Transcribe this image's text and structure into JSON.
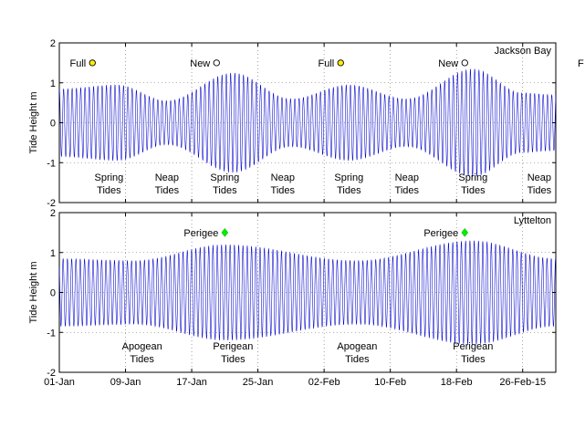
{
  "chart_data": [
    {
      "type": "line",
      "panel": "top",
      "ylabel": "Tide Height m",
      "ylim": [
        -2,
        2
      ],
      "yticks": [
        -2,
        -1,
        0,
        1,
        2
      ],
      "x_range": [
        "2015-01-01",
        "2015-03-02"
      ],
      "station_label": "Jackson Bay",
      "grid": true,
      "series_color": "#0000cc",
      "envelope": [
        {
          "x": "2015-01-01",
          "amp": 0.85
        },
        {
          "x": "2015-01-08",
          "amp": 0.95
        },
        {
          "x": "2015-01-14",
          "amp": 0.55
        },
        {
          "x": "2015-01-22",
          "amp": 1.25
        },
        {
          "x": "2015-01-29",
          "amp": 0.6
        },
        {
          "x": "2015-02-05",
          "amp": 0.95
        },
        {
          "x": "2015-02-12",
          "amp": 0.6
        },
        {
          "x": "2015-02-20",
          "amp": 1.35
        },
        {
          "x": "2015-02-26",
          "amp": 0.75
        },
        {
          "x": "2015-03-02",
          "amp": 0.7
        }
      ],
      "moon_markers": [
        {
          "label": "Full",
          "x": "2015-01-05",
          "y": 1.5,
          "color": "#ffee00"
        },
        {
          "label": "New",
          "x": "2015-01-20",
          "y": 1.5,
          "color": "#ffffff"
        },
        {
          "label": "Full",
          "x": "2015-02-04",
          "y": 1.5,
          "color": "#ffee00"
        },
        {
          "label": "New",
          "x": "2015-02-19",
          "y": 1.5,
          "color": "#ffffff"
        },
        {
          "label": "F",
          "x": "2015-03-06",
          "y": 1.5,
          "color": ""
        }
      ],
      "phase_labels": [
        {
          "line1": "Spring",
          "line2": "Tides",
          "x": "2015-01-07"
        },
        {
          "line1": "Neap",
          "line2": "Tides",
          "x": "2015-01-14"
        },
        {
          "line1": "Spring",
          "line2": "Tides",
          "x": "2015-01-21"
        },
        {
          "line1": "Neap",
          "line2": "Tides",
          "x": "2015-01-28"
        },
        {
          "line1": "Spring",
          "line2": "Tides",
          "x": "2015-02-05"
        },
        {
          "line1": "Neap",
          "line2": "Tides",
          "x": "2015-02-12"
        },
        {
          "line1": "Spring",
          "line2": "Tides",
          "x": "2015-02-20"
        },
        {
          "line1": "Neap",
          "line2": "Tides",
          "x": "2015-02-28"
        }
      ]
    },
    {
      "type": "line",
      "panel": "bottom",
      "ylabel": "Tide Height m",
      "ylim": [
        -2,
        2
      ],
      "yticks": [
        -2,
        -1,
        0,
        1,
        2
      ],
      "x_range": [
        "2015-01-01",
        "2015-03-02"
      ],
      "x_ticks": [
        {
          "x": "2015-01-01",
          "label": "01-Jan"
        },
        {
          "x": "2015-01-09",
          "label": "09-Jan"
        },
        {
          "x": "2015-01-17",
          "label": "17-Jan"
        },
        {
          "x": "2015-01-25",
          "label": "25-Jan"
        },
        {
          "x": "2015-02-02",
          "label": "02-Feb"
        },
        {
          "x": "2015-02-10",
          "label": "10-Feb"
        },
        {
          "x": "2015-02-18",
          "label": "18-Feb"
        },
        {
          "x": "2015-02-26",
          "label": "26-Feb-15"
        }
      ],
      "station_label": "Lyttelton",
      "grid": true,
      "series_color": "#0000cc",
      "envelope": [
        {
          "x": "2015-01-01",
          "amp": 0.85
        },
        {
          "x": "2015-01-10",
          "amp": 0.8
        },
        {
          "x": "2015-01-21",
          "amp": 1.2
        },
        {
          "x": "2015-02-06",
          "amp": 0.8
        },
        {
          "x": "2015-02-20",
          "amp": 1.3
        },
        {
          "x": "2015-03-02",
          "amp": 0.85
        }
      ],
      "perigee_markers": [
        {
          "label": "Perigee",
          "x": "2015-01-21",
          "y": 1.5,
          "color": "#00ee00"
        },
        {
          "label": "Perigee",
          "x": "2015-02-19",
          "y": 1.5,
          "color": "#00ee00"
        }
      ],
      "phase_labels": [
        {
          "line1": "Apogean",
          "line2": "Tides",
          "x": "2015-01-11"
        },
        {
          "line1": "Perigean",
          "line2": "Tides",
          "x": "2015-01-22"
        },
        {
          "line1": "Apogean",
          "line2": "Tides",
          "x": "2015-02-06"
        },
        {
          "line1": "Perigean",
          "line2": "Tides",
          "x": "2015-02-20"
        }
      ]
    }
  ]
}
